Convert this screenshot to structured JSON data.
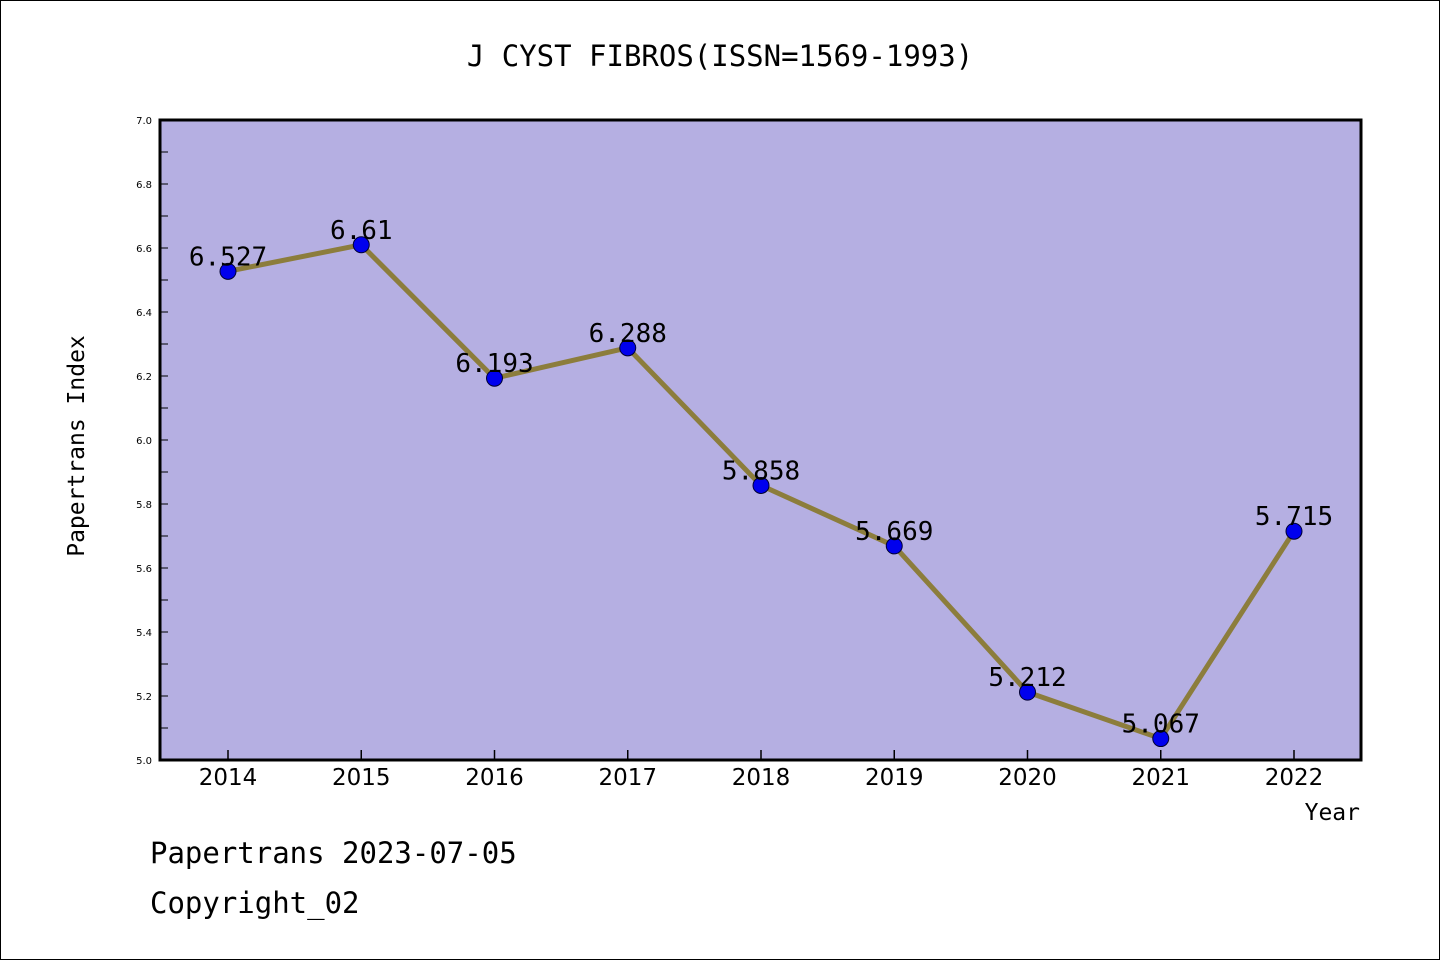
{
  "chart_data": {
    "type": "line",
    "title": "J CYST FIBROS(ISSN=1569-1993)",
    "xlabel": "Year",
    "ylabel": "Papertrans Index",
    "categories": [
      "2014",
      "2015",
      "2016",
      "2017",
      "2018",
      "2019",
      "2020",
      "2021",
      "2022"
    ],
    "series": [
      {
        "values": [
          6.527,
          6.61,
          6.193,
          6.288,
          5.858,
          5.669,
          5.212,
          5.067,
          5.715
        ]
      }
    ],
    "data_labels": [
      "6.527",
      "6.61",
      "6.193",
      "6.288",
      "5.858",
      "5.669",
      "5.212",
      "5.067",
      "5.715"
    ],
    "ylim": [
      5.0,
      7.0
    ],
    "yticks": [
      "5.0",
      "5.2",
      "5.4",
      "5.6",
      "5.8",
      "6.0",
      "6.2",
      "6.4",
      "6.6",
      "6.8",
      "7.0"
    ],
    "grid": false,
    "colors": {
      "plot_bg": "#b5afe2",
      "line": "#8c7d3c",
      "marker": "#0000ee"
    }
  },
  "footer": {
    "line1": "Papertrans 2023-07-05",
    "line2": "Copyright_02"
  }
}
